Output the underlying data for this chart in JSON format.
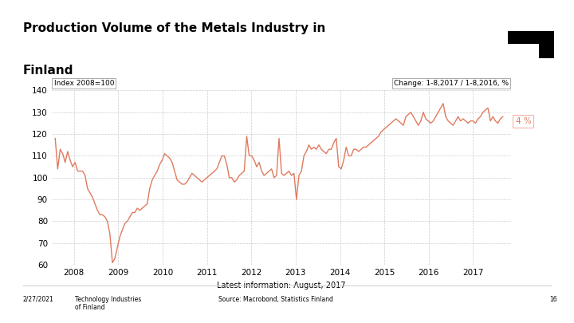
{
  "title_line1": "Production Volume of the Metals Industry in",
  "title_line2": "Finland",
  "ylabel": "Index 2008=100",
  "xlabel": "Latest information: August, 2017",
  "change_label": "Change: 1-8,2017 / 1-8,2016, %",
  "change_value": "4 %",
  "footer_date": "2/27/2021",
  "footer_source": "Technology Industries\nof Finland",
  "footer_source2": "Source: Macrobond, Statistics Finland",
  "footer_page": "16",
  "line_color": "#e07a5f",
  "annotation_box_color": "#f0b8a8",
  "ylim": [
    60,
    140
  ],
  "yticks": [
    60,
    70,
    80,
    90,
    100,
    110,
    120,
    130,
    140
  ],
  "bg_color": "#ffffff",
  "grid_color": "#cccccc",
  "x_start": 2007.58,
  "x_end": 2017.67,
  "year_ticks": [
    2008,
    2009,
    2010,
    2011,
    2012,
    2013,
    2014,
    2015,
    2016,
    2017
  ],
  "xlim": [
    2007.5,
    2017.85
  ],
  "data": [
    118,
    104,
    113,
    111,
    107,
    112,
    108,
    105,
    107,
    103,
    103,
    103,
    101,
    95,
    93,
    91,
    88,
    85,
    83,
    83,
    82,
    80,
    74,
    61,
    63,
    68,
    73,
    76,
    79,
    80,
    82,
    84,
    84,
    86,
    85,
    86,
    87,
    88,
    95,
    99,
    101,
    103,
    106,
    108,
    111,
    110,
    109,
    107,
    103,
    99,
    98,
    97,
    97,
    98,
    100,
    102,
    101,
    100,
    99,
    98,
    99,
    100,
    101,
    102,
    103,
    104,
    107,
    110,
    110,
    106,
    100,
    100,
    98,
    99,
    101,
    102,
    103,
    119,
    110,
    110,
    108,
    105,
    107,
    103,
    101,
    102,
    103,
    104,
    100,
    101,
    118,
    102,
    101,
    102,
    103,
    101,
    102,
    90,
    101,
    103,
    110,
    112,
    115,
    113,
    114,
    113,
    115,
    113,
    112,
    111,
    113,
    113,
    116,
    118,
    105,
    104,
    108,
    114,
    110,
    110,
    113,
    113,
    112,
    113,
    114,
    114,
    115,
    116,
    117,
    118,
    119,
    121,
    122,
    123,
    124,
    125,
    126,
    127,
    126,
    125,
    124,
    128,
    129,
    130,
    128,
    126,
    124,
    126,
    130,
    127,
    126,
    125,
    126,
    128,
    130,
    132,
    134,
    128,
    126,
    125,
    124,
    126,
    128,
    126,
    127,
    126,
    125,
    126,
    126,
    125,
    127,
    128,
    130,
    131,
    132,
    126,
    128,
    126,
    125,
    127,
    128
  ]
}
